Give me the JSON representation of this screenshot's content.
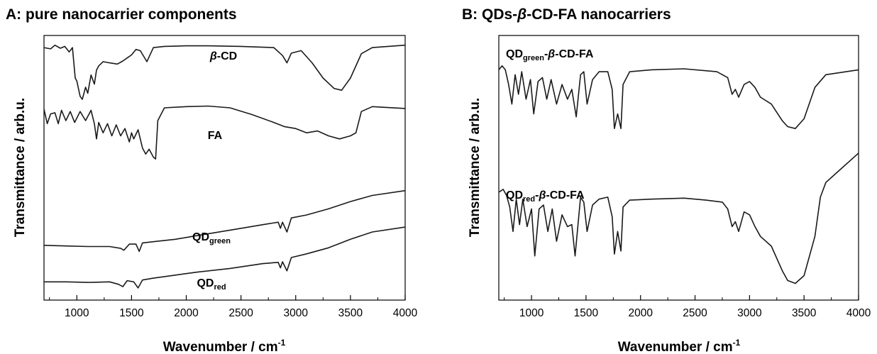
{
  "chart_data": [
    {
      "type": "line",
      "title": "A: pure nanocarrier components",
      "xlabel": "Wavenumber / cm",
      "xlabel_sup": "-1",
      "ylabel": "Transmittance / arb.u.",
      "xlim": [
        700,
        4000
      ],
      "xticks": [
        "1000",
        "1500",
        "2000",
        "2500",
        "3000",
        "3500",
        "4000"
      ],
      "grid": false,
      "series": [
        {
          "name": "β-CD",
          "label_parts": [
            {
              "t": "β",
              "italic": true
            },
            {
              "t": "-CD"
            }
          ],
          "offset": 3.0,
          "points": [
            [
              700,
              0.95
            ],
            [
              760,
              0.93
            ],
            [
              800,
              0.99
            ],
            [
              850,
              0.94
            ],
            [
              890,
              0.97
            ],
            [
              930,
              0.88
            ],
            [
              960,
              0.95
            ],
            [
              985,
              0.45
            ],
            [
              1000,
              0.4
            ],
            [
              1030,
              0.15
            ],
            [
              1050,
              0.1
            ],
            [
              1080,
              0.3
            ],
            [
              1100,
              0.2
            ],
            [
              1130,
              0.5
            ],
            [
              1160,
              0.35
            ],
            [
              1180,
              0.58
            ],
            [
              1200,
              0.65
            ],
            [
              1240,
              0.72
            ],
            [
              1300,
              0.7
            ],
            [
              1370,
              0.68
            ],
            [
              1420,
              0.73
            ],
            [
              1460,
              0.78
            ],
            [
              1500,
              0.83
            ],
            [
              1540,
              0.92
            ],
            [
              1580,
              0.9
            ],
            [
              1640,
              0.72
            ],
            [
              1700,
              0.95
            ],
            [
              1800,
              0.97
            ],
            [
              2000,
              0.98
            ],
            [
              2200,
              0.98
            ],
            [
              2500,
              0.97
            ],
            [
              2800,
              0.95
            ],
            [
              2880,
              0.82
            ],
            [
              2920,
              0.7
            ],
            [
              2960,
              0.86
            ],
            [
              3050,
              0.9
            ],
            [
              3150,
              0.7
            ],
            [
              3250,
              0.45
            ],
            [
              3350,
              0.28
            ],
            [
              3420,
              0.25
            ],
            [
              3500,
              0.45
            ],
            [
              3600,
              0.85
            ],
            [
              3700,
              0.95
            ],
            [
              4000,
              0.99
            ]
          ]
        },
        {
          "name": "FA",
          "label_parts": [
            {
              "t": "FA"
            }
          ],
          "offset": 2.0,
          "points": [
            [
              700,
              0.94
            ],
            [
              730,
              0.7
            ],
            [
              760,
              0.86
            ],
            [
              800,
              0.88
            ],
            [
              830,
              0.7
            ],
            [
              860,
              0.92
            ],
            [
              900,
              0.75
            ],
            [
              940,
              0.9
            ],
            [
              980,
              0.72
            ],
            [
              1030,
              0.9
            ],
            [
              1080,
              0.75
            ],
            [
              1130,
              0.92
            ],
            [
              1160,
              0.7
            ],
            [
              1180,
              0.45
            ],
            [
              1200,
              0.72
            ],
            [
              1240,
              0.55
            ],
            [
              1280,
              0.7
            ],
            [
              1320,
              0.5
            ],
            [
              1360,
              0.68
            ],
            [
              1400,
              0.5
            ],
            [
              1440,
              0.62
            ],
            [
              1480,
              0.4
            ],
            [
              1500,
              0.55
            ],
            [
              1520,
              0.45
            ],
            [
              1560,
              0.6
            ],
            [
              1600,
              0.3
            ],
            [
              1630,
              0.2
            ],
            [
              1660,
              0.28
            ],
            [
              1700,
              0.15
            ],
            [
              1720,
              0.12
            ],
            [
              1740,
              0.75
            ],
            [
              1800,
              0.96
            ],
            [
              2000,
              0.98
            ],
            [
              2200,
              0.99
            ],
            [
              2400,
              0.96
            ],
            [
              2600,
              0.85
            ],
            [
              2800,
              0.72
            ],
            [
              2900,
              0.65
            ],
            [
              3000,
              0.62
            ],
            [
              3100,
              0.55
            ],
            [
              3200,
              0.58
            ],
            [
              3300,
              0.5
            ],
            [
              3400,
              0.45
            ],
            [
              3500,
              0.5
            ],
            [
              3550,
              0.55
            ],
            [
              3600,
              0.9
            ],
            [
              3700,
              0.98
            ],
            [
              4000,
              0.95
            ]
          ]
        },
        {
          "name": "QD_green",
          "label_parts": [
            {
              "t": "QD"
            },
            {
              "t": "green",
              "sub": true
            }
          ],
          "offset": 0.6,
          "points": [
            [
              700,
              0.1
            ],
            [
              900,
              0.09
            ],
            [
              1100,
              0.08
            ],
            [
              1300,
              0.08
            ],
            [
              1400,
              0.05
            ],
            [
              1430,
              0.02
            ],
            [
              1480,
              0.12
            ],
            [
              1540,
              0.12
            ],
            [
              1570,
              0.0
            ],
            [
              1600,
              0.14
            ],
            [
              1700,
              0.16
            ],
            [
              1900,
              0.2
            ],
            [
              2100,
              0.26
            ],
            [
              2400,
              0.35
            ],
            [
              2700,
              0.44
            ],
            [
              2840,
              0.48
            ],
            [
              2860,
              0.38
            ],
            [
              2880,
              0.48
            ],
            [
              2920,
              0.32
            ],
            [
              2960,
              0.55
            ],
            [
              3100,
              0.6
            ],
            [
              3300,
              0.7
            ],
            [
              3500,
              0.82
            ],
            [
              3700,
              0.92
            ],
            [
              4000,
              1.0
            ]
          ]
        },
        {
          "name": "QD_red",
          "label_parts": [
            {
              "t": "QD"
            },
            {
              "t": "red",
              "sub": true
            }
          ],
          "offset": 0.0,
          "points": [
            [
              700,
              0.1
            ],
            [
              900,
              0.1
            ],
            [
              1100,
              0.09
            ],
            [
              1300,
              0.1
            ],
            [
              1380,
              0.06
            ],
            [
              1420,
              0.02
            ],
            [
              1460,
              0.12
            ],
            [
              1520,
              0.1
            ],
            [
              1560,
              0.0
            ],
            [
              1600,
              0.13
            ],
            [
              1700,
              0.16
            ],
            [
              1900,
              0.21
            ],
            [
              2100,
              0.26
            ],
            [
              2400,
              0.32
            ],
            [
              2700,
              0.4
            ],
            [
              2840,
              0.42
            ],
            [
              2860,
              0.33
            ],
            [
              2880,
              0.43
            ],
            [
              2920,
              0.28
            ],
            [
              2960,
              0.5
            ],
            [
              3100,
              0.56
            ],
            [
              3300,
              0.66
            ],
            [
              3500,
              0.8
            ],
            [
              3700,
              0.92
            ],
            [
              4000,
              1.0
            ]
          ]
        }
      ]
    },
    {
      "type": "line",
      "title": "B: QDs-β-CD-FA nanocarriers",
      "title_parts": [
        {
          "t": "B: QDs-"
        },
        {
          "t": "β",
          "italic": true
        },
        {
          "t": "-CD-FA nanocarriers"
        }
      ],
      "xlabel": "Wavenumber / cm",
      "xlabel_sup": "-1",
      "ylabel": "Transmittance / arb.u.",
      "xlim": [
        700,
        4000
      ],
      "xticks": [
        "1000",
        "1500",
        "2000",
        "2500",
        "3000",
        "3500",
        "4000"
      ],
      "grid": false,
      "series": [
        {
          "name": "QD_green-β-CD-FA",
          "label_parts": [
            {
              "t": "QD"
            },
            {
              "t": "green",
              "sub": true
            },
            {
              "t": "-"
            },
            {
              "t": "β",
              "italic": true
            },
            {
              "t": "-CD-FA"
            }
          ],
          "offset": 1.3,
          "points": [
            [
              700,
              0.9
            ],
            [
              730,
              0.94
            ],
            [
              760,
              0.9
            ],
            [
              790,
              0.75
            ],
            [
              820,
              0.55
            ],
            [
              850,
              0.85
            ],
            [
              880,
              0.65
            ],
            [
              910,
              0.88
            ],
            [
              950,
              0.6
            ],
            [
              990,
              0.8
            ],
            [
              1020,
              0.45
            ],
            [
              1060,
              0.78
            ],
            [
              1100,
              0.82
            ],
            [
              1140,
              0.6
            ],
            [
              1180,
              0.8
            ],
            [
              1230,
              0.55
            ],
            [
              1280,
              0.75
            ],
            [
              1330,
              0.6
            ],
            [
              1370,
              0.7
            ],
            [
              1410,
              0.42
            ],
            [
              1450,
              0.85
            ],
            [
              1480,
              0.88
            ],
            [
              1510,
              0.55
            ],
            [
              1560,
              0.8
            ],
            [
              1620,
              0.88
            ],
            [
              1700,
              0.88
            ],
            [
              1740,
              0.7
            ],
            [
              1760,
              0.3
            ],
            [
              1790,
              0.45
            ],
            [
              1820,
              0.3
            ],
            [
              1840,
              0.75
            ],
            [
              1900,
              0.88
            ],
            [
              2100,
              0.9
            ],
            [
              2400,
              0.91
            ],
            [
              2700,
              0.88
            ],
            [
              2800,
              0.82
            ],
            [
              2840,
              0.65
            ],
            [
              2870,
              0.7
            ],
            [
              2900,
              0.62
            ],
            [
              2950,
              0.75
            ],
            [
              3000,
              0.78
            ],
            [
              3050,
              0.72
            ],
            [
              3100,
              0.62
            ],
            [
              3200,
              0.55
            ],
            [
              3300,
              0.38
            ],
            [
              3350,
              0.32
            ],
            [
              3420,
              0.3
            ],
            [
              3500,
              0.4
            ],
            [
              3600,
              0.72
            ],
            [
              3700,
              0.85
            ],
            [
              4000,
              0.9
            ]
          ]
        },
        {
          "name": "QD_red-β-CD-FA",
          "label_parts": [
            {
              "t": "QD"
            },
            {
              "t": "red",
              "sub": true
            },
            {
              "t": "-"
            },
            {
              "t": "β",
              "italic": true
            },
            {
              "t": "-CD-FA"
            }
          ],
          "offset": 0.0,
          "points": [
            [
              700,
              0.95
            ],
            [
              740,
              0.98
            ],
            [
              770,
              0.92
            ],
            [
              800,
              0.8
            ],
            [
              830,
              0.55
            ],
            [
              860,
              0.88
            ],
            [
              890,
              0.62
            ],
            [
              920,
              0.88
            ],
            [
              960,
              0.6
            ],
            [
              1000,
              0.78
            ],
            [
              1030,
              0.3
            ],
            [
              1070,
              0.78
            ],
            [
              1110,
              0.82
            ],
            [
              1150,
              0.55
            ],
            [
              1190,
              0.78
            ],
            [
              1230,
              0.45
            ],
            [
              1280,
              0.72
            ],
            [
              1330,
              0.6
            ],
            [
              1370,
              0.62
            ],
            [
              1400,
              0.3
            ],
            [
              1450,
              0.9
            ],
            [
              1480,
              0.85
            ],
            [
              1510,
              0.55
            ],
            [
              1560,
              0.82
            ],
            [
              1620,
              0.88
            ],
            [
              1700,
              0.9
            ],
            [
              1740,
              0.7
            ],
            [
              1760,
              0.32
            ],
            [
              1790,
              0.55
            ],
            [
              1820,
              0.35
            ],
            [
              1840,
              0.8
            ],
            [
              1900,
              0.87
            ],
            [
              2100,
              0.88
            ],
            [
              2400,
              0.89
            ],
            [
              2600,
              0.87
            ],
            [
              2750,
              0.85
            ],
            [
              2800,
              0.78
            ],
            [
              2840,
              0.6
            ],
            [
              2870,
              0.65
            ],
            [
              2900,
              0.55
            ],
            [
              2950,
              0.75
            ],
            [
              3000,
              0.72
            ],
            [
              3050,
              0.6
            ],
            [
              3100,
              0.5
            ],
            [
              3200,
              0.4
            ],
            [
              3300,
              0.15
            ],
            [
              3350,
              0.05
            ],
            [
              3420,
              0.02
            ],
            [
              3500,
              0.1
            ],
            [
              3600,
              0.5
            ],
            [
              3650,
              0.9
            ],
            [
              3700,
              1.05
            ],
            [
              3800,
              1.15
            ],
            [
              4000,
              1.35
            ]
          ]
        }
      ]
    }
  ]
}
